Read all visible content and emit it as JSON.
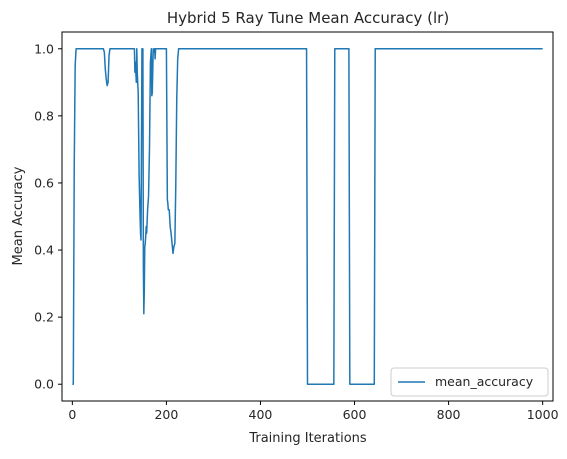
{
  "chart_data": {
    "type": "line",
    "title": "Hybrid 5 Ray Tune Mean Accuracy (lr)",
    "xlabel": "Training Iterations",
    "ylabel": "Mean Accuracy",
    "xlim": [
      -22,
      1022
    ],
    "ylim": [
      -0.05,
      1.05
    ],
    "xticks": [
      0,
      200,
      400,
      600,
      800,
      1000
    ],
    "yticks": [
      0.0,
      0.2,
      0.4,
      0.6,
      0.8,
      1.0
    ],
    "xtick_labels": [
      "0",
      "200",
      "400",
      "600",
      "800",
      "1000"
    ],
    "ytick_labels": [
      "0.0",
      "0.2",
      "0.4",
      "0.6",
      "0.8",
      "1.0"
    ],
    "grid": false,
    "legend": {
      "position": "bottom-right"
    },
    "series": [
      {
        "name": "mean_accuracy",
        "color": "#1f77b4",
        "x": [
          0,
          2,
          4,
          6,
          8,
          66,
          68,
          70,
          72,
          74,
          76,
          78,
          80,
          82,
          84,
          132,
          133,
          134,
          136,
          137,
          138,
          140,
          142,
          143,
          144,
          145,
          146,
          148,
          149,
          150,
          151,
          152,
          153,
          154,
          155,
          156,
          157,
          158,
          160,
          162,
          164,
          166,
          168,
          169,
          170,
          172,
          174,
          175,
          176,
          177,
          178,
          180,
          182,
          200,
          202,
          203,
          204,
          206,
          208,
          210,
          212,
          214,
          216,
          218,
          220,
          222,
          224,
          226,
          228,
          498,
          500,
          556,
          558,
          588,
          590,
          642,
          644,
          1000
        ],
        "y": [
          0.0,
          0.0,
          0.65,
          0.95,
          1.0,
          1.0,
          0.99,
          0.94,
          0.91,
          0.89,
          0.9,
          0.98,
          1.0,
          1.0,
          1.0,
          1.0,
          0.93,
          0.96,
          0.9,
          1.0,
          0.93,
          0.87,
          0.62,
          0.56,
          0.5,
          0.45,
          0.43,
          1.0,
          0.99,
          1.0,
          0.35,
          0.21,
          0.28,
          0.41,
          0.42,
          0.44,
          0.47,
          0.45,
          0.52,
          0.56,
          0.7,
          0.96,
          1.0,
          0.86,
          0.87,
          1.0,
          0.99,
          1.0,
          0.97,
          1.0,
          1.0,
          1.0,
          1.0,
          1.0,
          0.55,
          0.54,
          0.52,
          0.52,
          0.47,
          0.45,
          0.42,
          0.39,
          0.41,
          0.42,
          0.6,
          0.85,
          0.97,
          1.0,
          1.0,
          1.0,
          0.0,
          0.0,
          1.0,
          1.0,
          0.0,
          0.0,
          1.0,
          1.0
        ]
      }
    ]
  }
}
